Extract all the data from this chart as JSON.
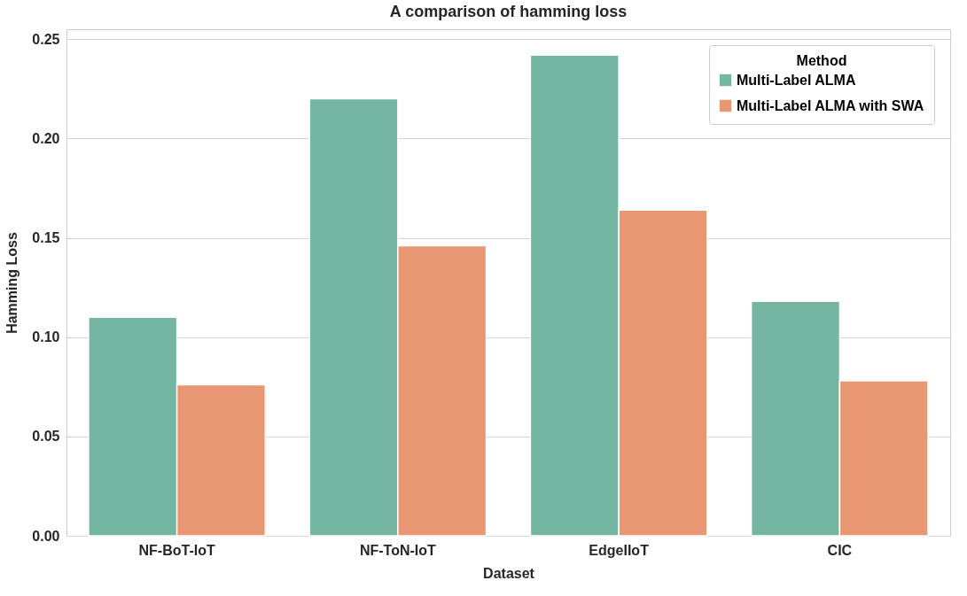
{
  "chart_data": {
    "type": "bar",
    "title": "A comparison of hamming loss",
    "xlabel": "Dataset",
    "ylabel": "Hamming Loss",
    "legend_title": "Method",
    "categories": [
      "NF-BoT-IoT",
      "NF-ToN-IoT",
      "EdgeIIoT",
      "CIC"
    ],
    "series": [
      {
        "name": "Multi-Label ALMA",
        "color": "#74b6a1",
        "values": [
          0.11,
          0.22,
          0.242,
          0.118
        ]
      },
      {
        "name": "Multi-Label ALMA with SWA",
        "color": "#e99673",
        "values": [
          0.076,
          0.146,
          0.164,
          0.078
        ]
      }
    ],
    "ylim": [
      0,
      0.255
    ],
    "yticks": [
      {
        "value": 0,
        "label": "0.00"
      },
      {
        "value": 0.05,
        "label": "0.05"
      },
      {
        "value": 0.1,
        "label": "0.10"
      },
      {
        "value": 0.15,
        "label": "0.15"
      },
      {
        "value": 0.2,
        "label": "0.20"
      },
      {
        "value": 0.25,
        "label": "0.25"
      }
    ],
    "grid": "y",
    "legend": "top right"
  }
}
